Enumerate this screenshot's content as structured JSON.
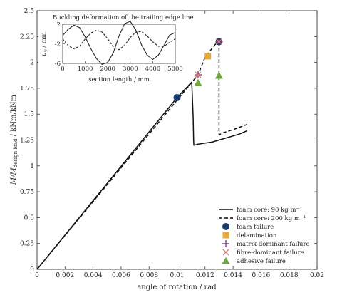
{
  "chart_data": {
    "type": "line",
    "main": {
      "xlabel": "angle of rotation / rad",
      "ylabel_main": "M/M",
      "ylabel_sub": "design load",
      "ylabel_tail": " / kNm/kNm",
      "xlim": [
        0,
        0.02
      ],
      "ylim": [
        0,
        2.5
      ],
      "xticks": [
        "0",
        "0.002",
        "0.004",
        "0.006",
        "0.008",
        "0.01",
        "0.012",
        "0.014",
        "0.016",
        "0.018",
        "0.02"
      ],
      "yticks": [
        "0",
        "0.25",
        "0.5",
        "0.75",
        "1",
        "1.25",
        "1.5",
        "1.75",
        "2",
        "2.25",
        "2.5"
      ],
      "series": [
        {
          "name": "foam core: 90 kg m⁻³",
          "style": "solid",
          "x": [
            0,
            0.01,
            0.01105,
            0.01115,
            0.01118,
            0.0112,
            0.0115,
            0.0125,
            0.0135,
            0.0145,
            0.015
          ],
          "y": [
            0,
            1.66,
            1.81,
            1.47,
            1.25,
            1.2,
            1.21,
            1.23,
            1.27,
            1.31,
            1.34
          ]
        },
        {
          "name": "foam core: 200 kg m⁻³",
          "style": "dashed",
          "x": [
            0,
            0.0115,
            0.012,
            0.013,
            0.013,
            0.0133,
            0.014,
            0.015
          ],
          "y": [
            0,
            1.88,
            2.05,
            2.22,
            1.3,
            1.32,
            1.35,
            1.4
          ]
        }
      ],
      "markers": [
        {
          "kind": "foam",
          "label": "foam failure",
          "points": [
            [
              0.01,
              1.66
            ],
            [
              0.013,
              2.2
            ]
          ]
        },
        {
          "kind": "delamination",
          "label": "delamination",
          "points": [
            [
              0.0122,
              2.06
            ]
          ]
        },
        {
          "kind": "matrix",
          "label": "matrix-dominant failure",
          "points": [
            [
              0.0115,
              1.88
            ],
            [
              0.013,
              2.2
            ]
          ]
        },
        {
          "kind": "fibre",
          "label": "fibre-dominant failure",
          "points": [
            [
              0.0115,
              1.88
            ],
            [
              0.013,
              2.2
            ]
          ]
        },
        {
          "kind": "adhesive",
          "label": "adhesive failure",
          "points": [
            [
              0.0115,
              1.8
            ],
            [
              0.013,
              1.87
            ]
          ]
        }
      ],
      "colors": {
        "foam": "#1b3a6b",
        "delamination": "#e8a93a",
        "matrix": "#7a3f8f",
        "fibre": "#e07b6a",
        "adhesive": "#6ea83d"
      }
    },
    "inset": {
      "title": "Buckling deformation of the trailing edge line",
      "xlabel": "section length / mm",
      "ylabel": "u",
      "ylabel_sub": "y",
      "ylabel_tail": " / mm",
      "xlim": [
        0,
        5000
      ],
      "ylim": [
        -6,
        2
      ],
      "xticks": [
        "0",
        "1000",
        "2000",
        "3000",
        "4000",
        "5000"
      ],
      "yticks": [
        "2",
        "-2",
        "-6"
      ],
      "series": [
        {
          "style": "solid",
          "x": [
            0,
            250,
            500,
            750,
            1000,
            1250,
            1500,
            1750,
            2000,
            2250,
            2500,
            2750,
            3000,
            3250,
            3500,
            3750,
            4000,
            4250,
            4500,
            4750,
            5000
          ],
          "y": [
            -0.3,
            1.0,
            1.8,
            1.3,
            -0.6,
            -3.0,
            -5.0,
            -6.2,
            -5.8,
            -3.8,
            -0.4,
            2.1,
            2.6,
            0.8,
            -2.2,
            -4.3,
            -5.2,
            -4.3,
            -2.3,
            -0.2,
            0.3
          ]
        },
        {
          "style": "dashed",
          "x": [
            0,
            250,
            500,
            750,
            1000,
            1250,
            1500,
            1750,
            2000,
            2250,
            2500,
            2750,
            3000,
            3250,
            3500,
            3750,
            4000,
            4250,
            4500,
            4750,
            5000
          ],
          "y": [
            -1.0,
            -2.4,
            -3.0,
            -2.5,
            -1.0,
            0.2,
            0.8,
            0.4,
            -1.0,
            -2.6,
            -3.2,
            -2.3,
            -0.7,
            0.4,
            0.5,
            -0.4,
            -1.6,
            -2.5,
            -2.5,
            -1.7,
            -1.0
          ]
        }
      ]
    }
  }
}
